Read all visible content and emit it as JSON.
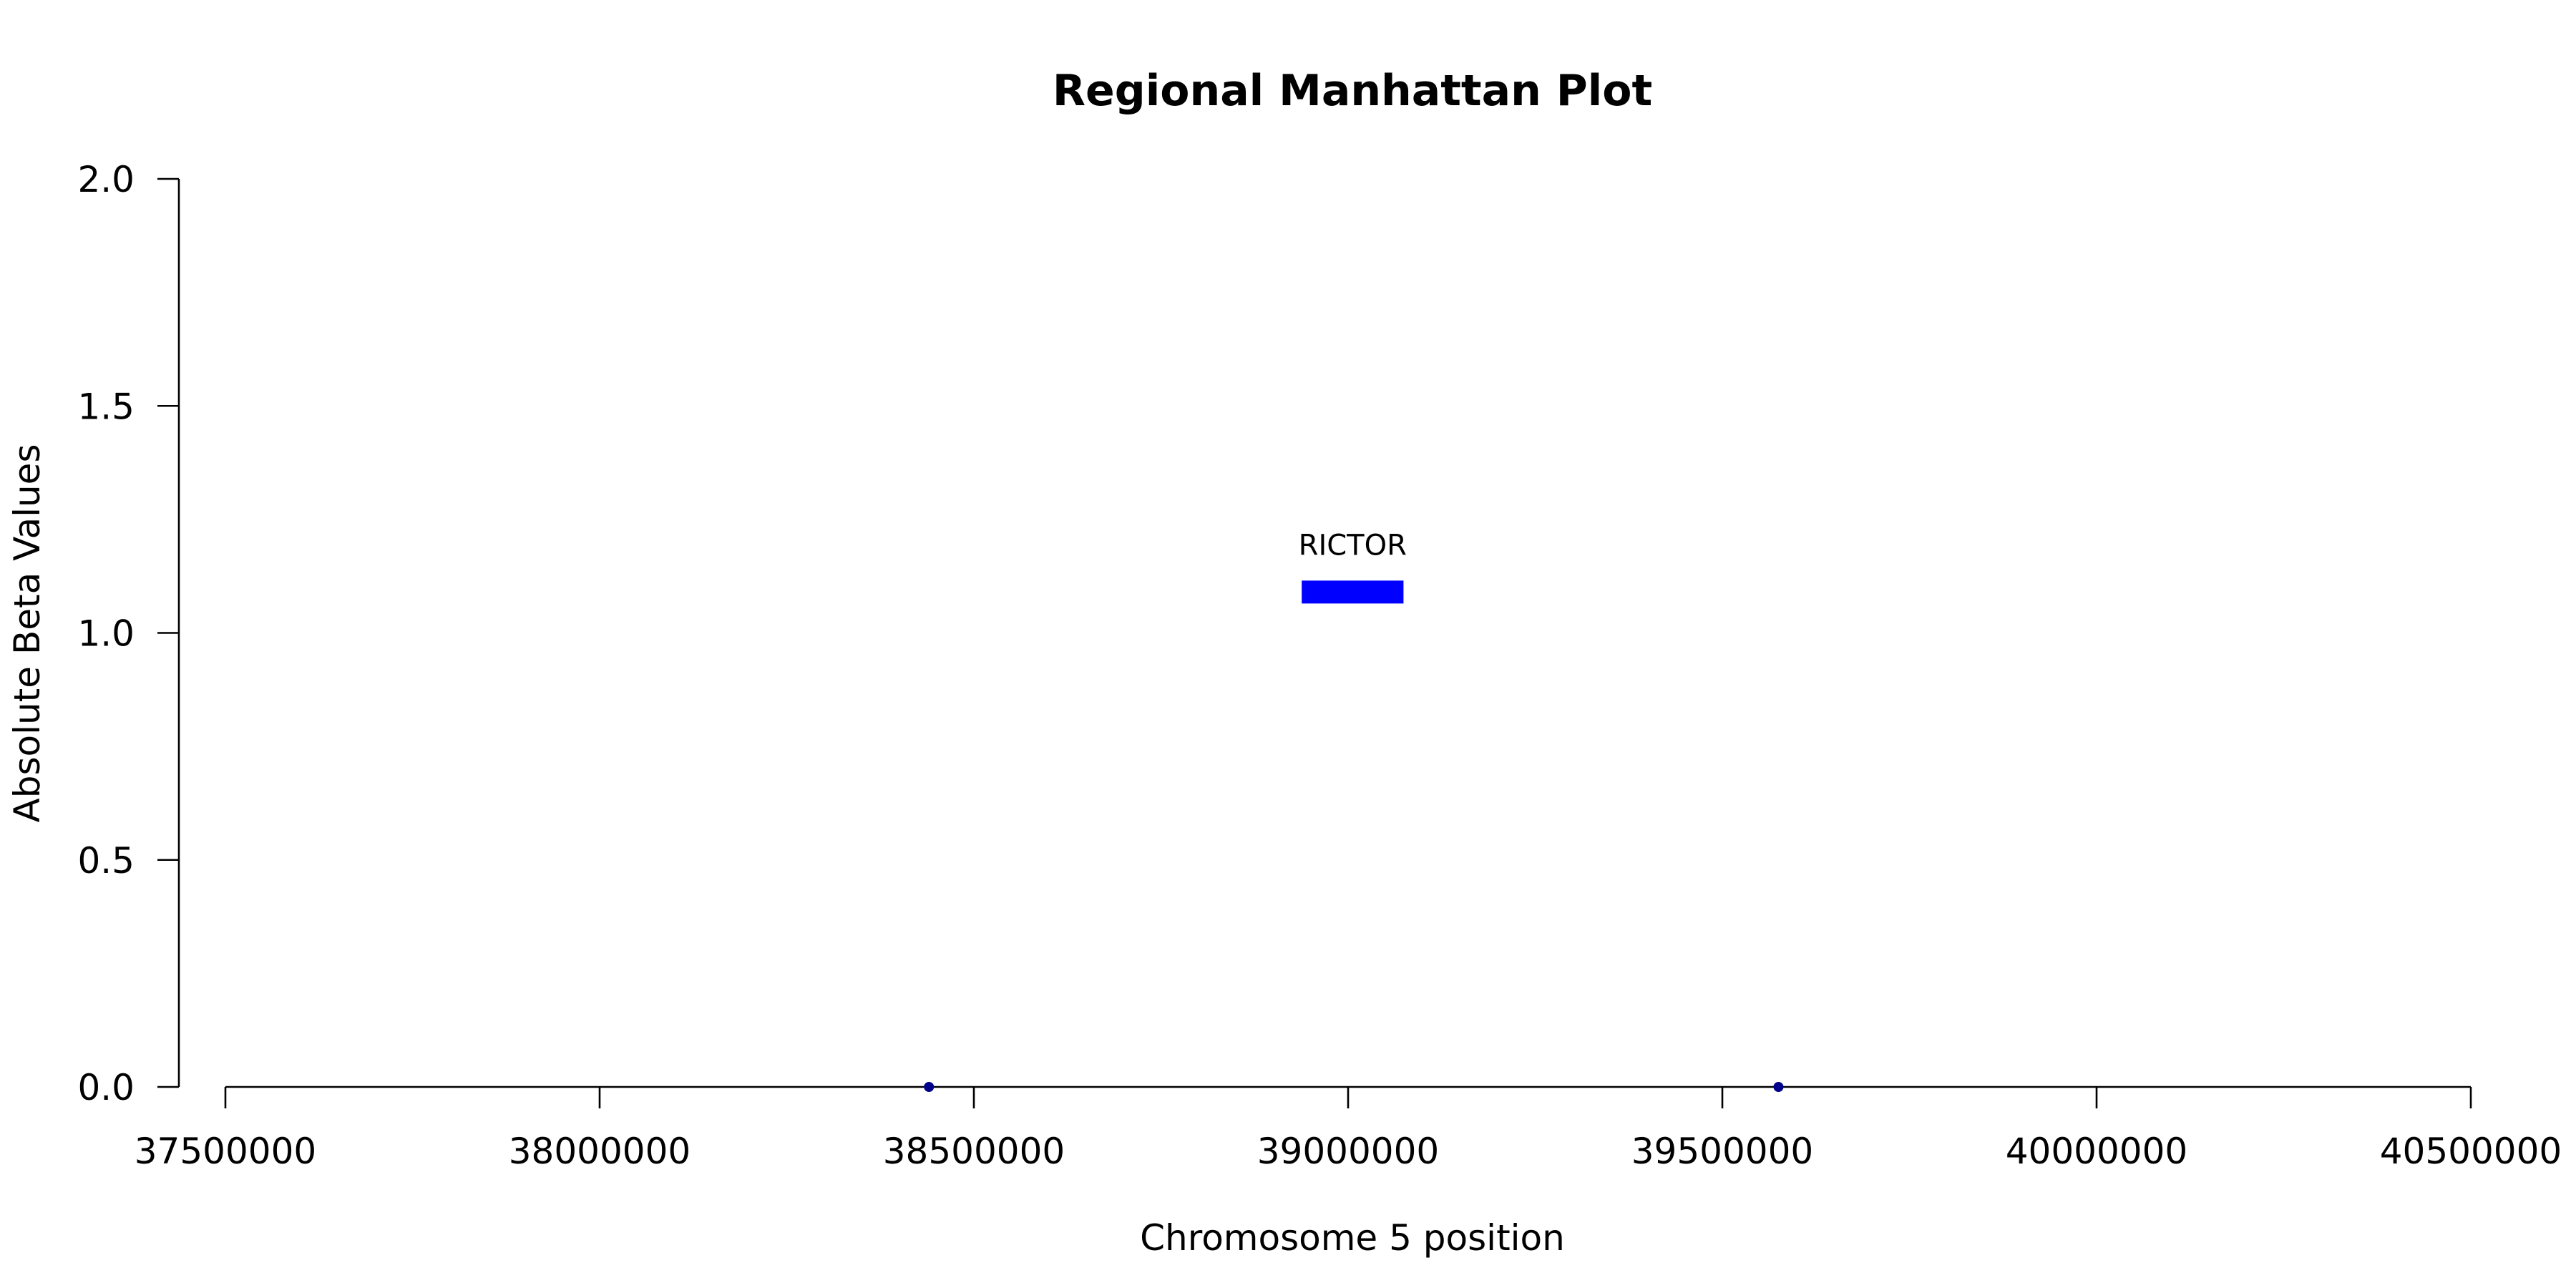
{
  "chart_data": {
    "type": "scatter",
    "title": "Regional Manhattan Plot",
    "xlabel": "Chromosome 5 position",
    "ylabel": "Absolute Beta Values",
    "xlim": [
      37500000,
      40500000
    ],
    "ylim": [
      0,
      2
    ],
    "x_ticks": [
      37500000,
      38000000,
      38500000,
      39000000,
      39500000,
      40000000,
      40500000
    ],
    "y_ticks": [
      "0.0",
      "0.5",
      "1.0",
      "1.5",
      "2.0"
    ],
    "grid": false,
    "points": [
      {
        "x": 38440000,
        "y": 0.0
      },
      {
        "x": 39575000,
        "y": 0.0
      }
    ],
    "point_color": "#00008b",
    "genes": [
      {
        "name": "RICTOR",
        "start": 38938000,
        "end": 39074000,
        "y": 1.09,
        "color": "#0000ff"
      }
    ]
  }
}
